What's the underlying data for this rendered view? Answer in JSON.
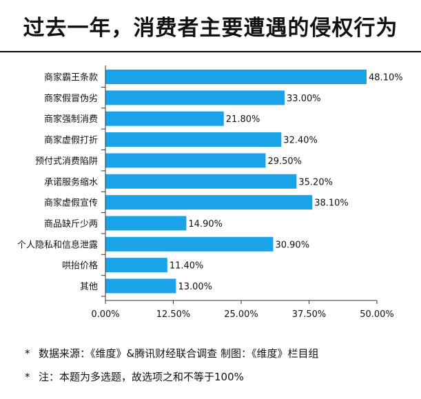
{
  "title": "过去一年，消费者主要遭遇的侵权行为",
  "chart_data": {
    "type": "bar",
    "orientation": "horizontal",
    "categories": [
      "商家霸王条款",
      "商家假冒伪劣",
      "商家强制消费",
      "商家虚假打折",
      "预付式消费陷阱",
      "承诺服务缩水",
      "商家虚假宣传",
      "商品缺斤少两",
      "个人隐私和信息泄露",
      "哄抬价格",
      "其他"
    ],
    "values": [
      48.1,
      33.0,
      21.8,
      32.4,
      29.5,
      35.2,
      38.1,
      14.9,
      30.9,
      11.4,
      13.0
    ],
    "value_labels": [
      "48.10%",
      "33.00%",
      "21.80%",
      "32.40%",
      "29.50%",
      "35.20%",
      "38.10%",
      "14.90%",
      "30.90%",
      "11.40%",
      "13.00%"
    ],
    "x_ticks": [
      0,
      12.5,
      25,
      37.5,
      50
    ],
    "x_tick_labels": [
      "0.00%",
      "12.50%",
      "25.00%",
      "37.50%",
      "50.00%"
    ],
    "xlim": [
      0,
      50
    ],
    "bar_color": "#1aa3e8",
    "grid": false,
    "legend": "none"
  },
  "notes": [
    {
      "star": "*",
      "text": "数据来源：《维度》&腾讯财经联合调查   制图：《维度》栏目组"
    },
    {
      "star": "*",
      "text": "注：本题为多选题，故选项之和不等于100%"
    }
  ]
}
